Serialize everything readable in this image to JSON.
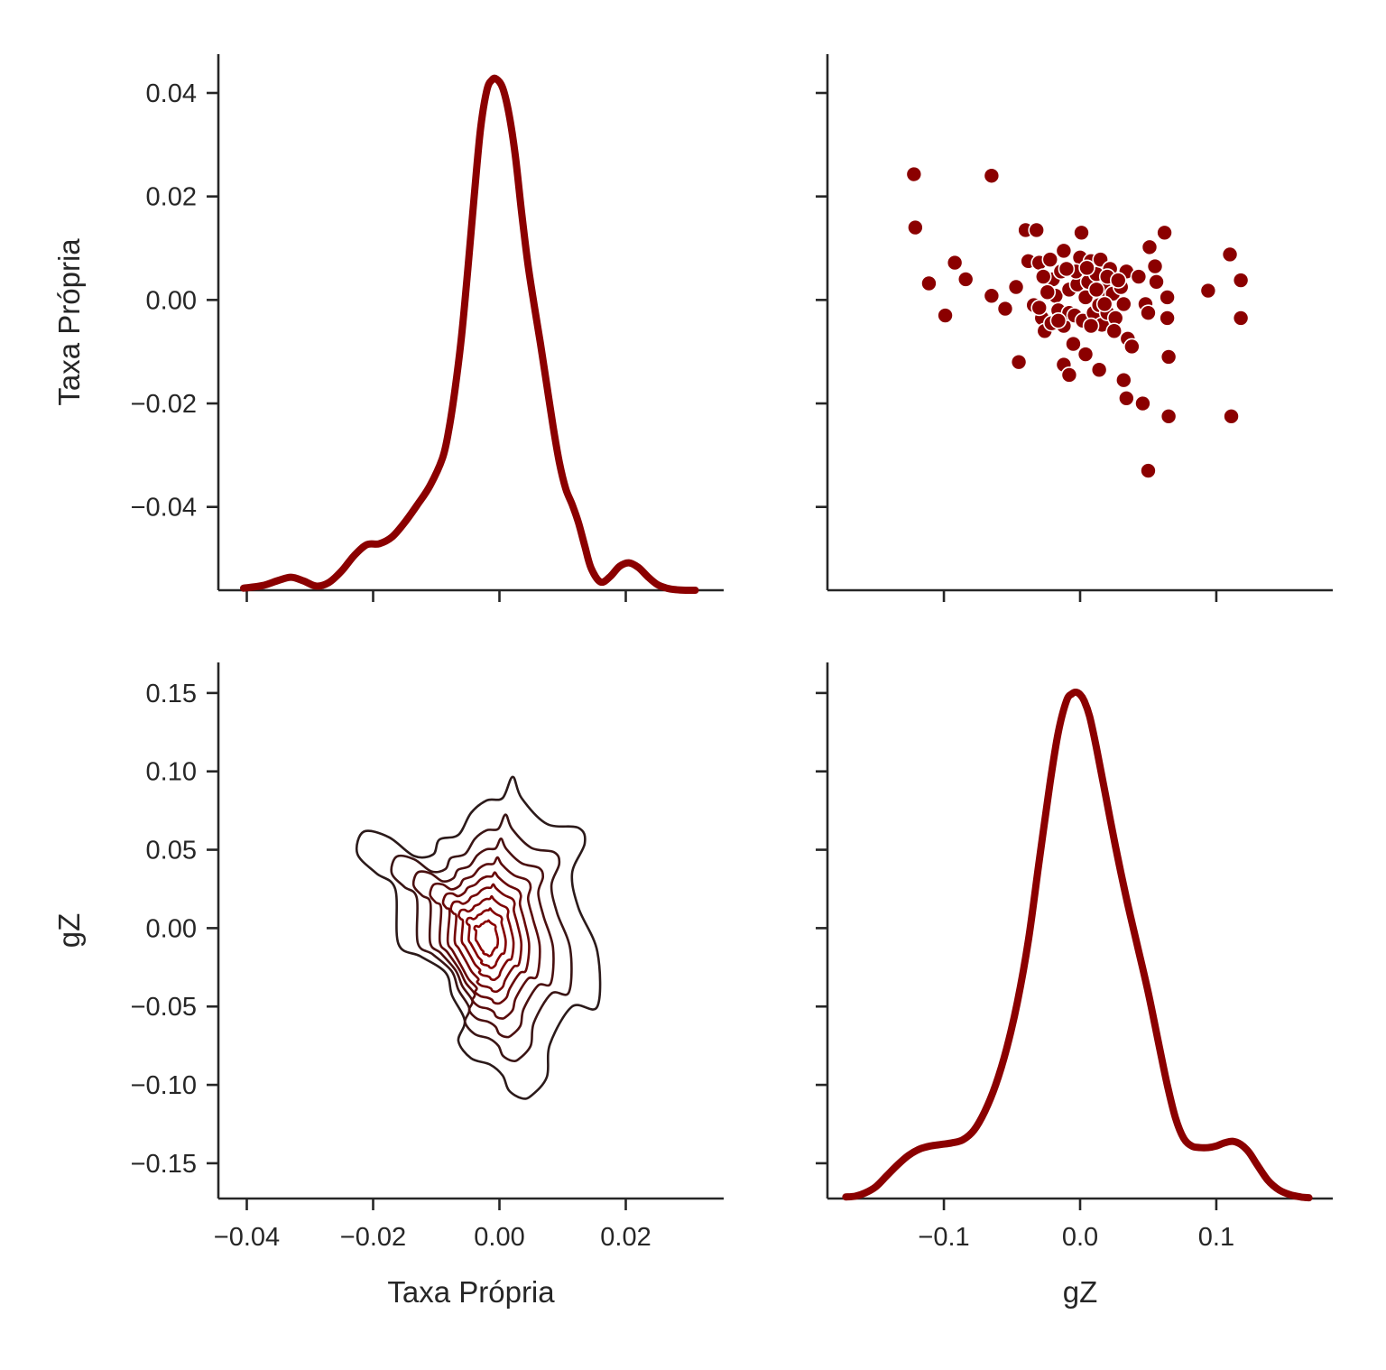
{
  "figure": {
    "accent_color": "#8b0000",
    "contour_colors": [
      "#2b1a1a",
      "#3a1515",
      "#4a1010",
      "#5a0c0c",
      "#680808",
      "#740505",
      "#7e0303",
      "#850101",
      "#8b0000"
    ]
  },
  "chart_data": [
    {
      "type": "line",
      "panel": "top-left",
      "description": "kde",
      "xlabel": "",
      "ylabel": "Taxa Própria",
      "xlim": [
        -0.0445,
        0.0355
      ],
      "ylim": [
        -0.0561,
        0.0475
      ],
      "x_ticks": [
        -0.04,
        -0.02,
        0.0,
        0.02
      ],
      "x_tick_labels": [
        "",
        "",
        "",
        ""
      ],
      "y_ticks": [
        0.04,
        0.02,
        0.0,
        -0.02,
        -0.04
      ],
      "y_tick_labels": [
        "0.04",
        "0.02",
        "0.00",
        "−0.02",
        "−0.04"
      ],
      "x": [
        -0.0405,
        -0.0375,
        -0.035,
        -0.033,
        -0.031,
        -0.029,
        -0.027,
        -0.025,
        -0.023,
        -0.021,
        -0.019,
        -0.017,
        -0.015,
        -0.013,
        -0.011,
        -0.009,
        -0.008,
        -0.007,
        -0.006,
        -0.005,
        -0.004,
        -0.003,
        -0.002,
        -0.0012,
        -0.0005,
        0.0005,
        0.0015,
        0.0025,
        0.0035,
        0.0045,
        0.0055,
        0.0065,
        0.0075,
        0.0085,
        0.0095,
        0.0105,
        0.0115,
        0.0125,
        0.0135,
        0.0145,
        0.016,
        0.0175,
        0.019,
        0.0205,
        0.022,
        0.0235,
        0.025,
        0.0265,
        0.028,
        0.0295,
        0.031
      ],
      "y": [
        -0.0557,
        -0.0552,
        -0.0542,
        -0.0536,
        -0.0543,
        -0.0553,
        -0.0546,
        -0.0524,
        -0.0494,
        -0.0473,
        -0.0471,
        -0.0458,
        -0.043,
        -0.0396,
        -0.0359,
        -0.0305,
        -0.025,
        -0.017,
        -0.007,
        0.006,
        0.02,
        0.033,
        0.0405,
        0.0425,
        0.0427,
        0.041,
        0.036,
        0.028,
        0.017,
        0.007,
        -0.001,
        -0.0085,
        -0.0165,
        -0.0245,
        -0.0315,
        -0.0365,
        -0.0395,
        -0.043,
        -0.0475,
        -0.0518,
        -0.0545,
        -0.0535,
        -0.0515,
        -0.0508,
        -0.0517,
        -0.0535,
        -0.055,
        -0.0557,
        -0.056,
        -0.0561,
        -0.0561
      ]
    },
    {
      "type": "scatter",
      "panel": "top-right",
      "xlabel": "",
      "ylabel": "",
      "xlim": [
        -0.1855,
        0.1855
      ],
      "ylim": [
        -0.0561,
        0.0475
      ],
      "x_ticks": [
        -0.1,
        0.0,
        0.1
      ],
      "x_tick_labels": [
        "",
        "",
        ""
      ],
      "y_ticks": [
        0.04,
        0.02,
        0.0,
        -0.02,
        -0.04
      ],
      "y_tick_labels": [
        "",
        "",
        "",
        "",
        ""
      ],
      "points": [
        [
          -0.122,
          0.0243
        ],
        [
          -0.065,
          0.024
        ],
        [
          -0.121,
          0.014
        ],
        [
          -0.092,
          0.0072
        ],
        [
          -0.111,
          0.0032
        ],
        [
          -0.084,
          0.004
        ],
        [
          -0.099,
          -0.003
        ],
        [
          -0.065,
          0.0008
        ],
        [
          -0.047,
          0.0025
        ],
        [
          -0.055,
          -0.0017
        ],
        [
          -0.045,
          -0.012
        ],
        [
          -0.04,
          0.0135
        ],
        [
          -0.032,
          0.0135
        ],
        [
          -0.038,
          0.0075
        ],
        [
          -0.03,
          0.0072
        ],
        [
          -0.034,
          -0.001
        ],
        [
          -0.028,
          -0.0035
        ],
        [
          -0.026,
          -0.006
        ],
        [
          -0.022,
          0.0078
        ],
        [
          -0.02,
          0.004
        ],
        [
          -0.018,
          0.0008
        ],
        [
          -0.016,
          -0.002
        ],
        [
          -0.014,
          0.0055
        ],
        [
          -0.012,
          -0.005
        ],
        [
          -0.012,
          0.0095
        ],
        [
          -0.008,
          0.002
        ],
        [
          -0.008,
          -0.0025
        ],
        [
          -0.005,
          -0.0085
        ],
        [
          -0.004,
          -0.003
        ],
        [
          -0.002,
          0.003
        ],
        [
          0.0,
          0.0082
        ],
        [
          0.001,
          0.013
        ],
        [
          0.002,
          -0.004
        ],
        [
          0.004,
          0.0005
        ],
        [
          0.004,
          -0.0105
        ],
        [
          0.006,
          0.0035
        ],
        [
          0.008,
          0.0075
        ],
        [
          0.01,
          -0.0025
        ],
        [
          0.012,
          0.005
        ],
        [
          0.014,
          -0.001
        ],
        [
          0.015,
          0.0078
        ],
        [
          0.016,
          -0.0048
        ],
        [
          0.018,
          0.002
        ],
        [
          0.02,
          -0.0025
        ],
        [
          0.022,
          0.006
        ],
        [
          0.024,
          0.0012
        ],
        [
          0.026,
          -0.0035
        ],
        [
          0.03,
          0.0025
        ],
        [
          0.032,
          -0.0008
        ],
        [
          0.034,
          0.0055
        ],
        [
          0.035,
          -0.0075
        ],
        [
          -0.012,
          -0.0125
        ],
        [
          -0.008,
          -0.0145
        ],
        [
          0.014,
          -0.0135
        ],
        [
          0.032,
          -0.0155
        ],
        [
          0.034,
          -0.019
        ],
        [
          0.046,
          -0.02
        ],
        [
          0.038,
          -0.009
        ],
        [
          0.043,
          0.0045
        ],
        [
          0.048,
          -0.0008
        ],
        [
          0.05,
          -0.0025
        ],
        [
          0.051,
          0.0102
        ],
        [
          0.055,
          0.0065
        ],
        [
          0.056,
          0.0035
        ],
        [
          0.062,
          0.013
        ],
        [
          0.064,
          0.0005
        ],
        [
          0.064,
          -0.0035
        ],
        [
          0.065,
          -0.011
        ],
        [
          0.065,
          -0.0225
        ],
        [
          0.05,
          -0.033
        ],
        [
          0.094,
          0.0018
        ],
        [
          0.11,
          0.0088
        ],
        [
          0.118,
          0.0038
        ],
        [
          0.118,
          -0.0035
        ],
        [
          0.111,
          -0.0225
        ],
        [
          -0.027,
          0.0045
        ],
        [
          -0.024,
          0.0015
        ],
        [
          -0.021,
          -0.0045
        ],
        [
          -0.016,
          -0.004
        ],
        [
          -0.003,
          0.0055
        ],
        [
          0.008,
          -0.005
        ],
        [
          0.012,
          0.002
        ],
        [
          0.02,
          0.0045
        ],
        [
          0.025,
          -0.006
        ],
        [
          0.028,
          0.0038
        ],
        [
          -0.03,
          -0.0015
        ],
        [
          0.005,
          0.0062
        ],
        [
          -0.01,
          0.006
        ],
        [
          0.018,
          -0.0008
        ]
      ]
    },
    {
      "type": "contour",
      "panel": "bottom-left",
      "description": "bivariate kde",
      "xlabel": "Taxa Própria",
      "ylabel": "gZ",
      "xlim": [
        -0.0445,
        0.0355
      ],
      "ylim": [
        -0.1725,
        0.1695
      ],
      "x_ticks": [
        -0.04,
        -0.02,
        0.0,
        0.02
      ],
      "x_tick_labels": [
        "−0.04",
        "−0.02",
        "0.00",
        "0.02"
      ],
      "y_ticks": [
        0.15,
        0.1,
        0.05,
        0.0,
        -0.05,
        -0.1,
        -0.15
      ],
      "y_tick_labels": [
        "0.15",
        "0.10",
        "0.05",
        "0.00",
        "−0.05",
        "−0.10",
        "−0.15"
      ],
      "levels": 9,
      "center": [
        -0.0021,
        -0.0065
      ]
    },
    {
      "type": "line",
      "panel": "bottom-right",
      "description": "kde",
      "xlabel": "gZ",
      "ylabel": "",
      "xlim": [
        -0.1855,
        0.1855
      ],
      "ylim": [
        -0.1725,
        0.1695
      ],
      "x_ticks": [
        -0.1,
        0.0,
        0.1
      ],
      "x_tick_labels": [
        "−0.1",
        "0.0",
        "0.1"
      ],
      "y_ticks": [
        0.15,
        0.1,
        0.05,
        0.0,
        -0.05,
        -0.1,
        -0.15
      ],
      "y_tick_labels": [
        "",
        "",
        "",
        "",
        "",
        "",
        ""
      ],
      "x": [
        -0.172,
        -0.165,
        -0.158,
        -0.15,
        -0.142,
        -0.134,
        -0.126,
        -0.118,
        -0.11,
        -0.102,
        -0.094,
        -0.086,
        -0.078,
        -0.07,
        -0.062,
        -0.054,
        -0.046,
        -0.038,
        -0.03,
        -0.022,
        -0.016,
        -0.01,
        -0.006,
        -0.003,
        0.0,
        0.003,
        0.007,
        0.012,
        0.018,
        0.026,
        0.034,
        0.042,
        0.05,
        0.058,
        0.064,
        0.07,
        0.076,
        0.082,
        0.088,
        0.094,
        0.1,
        0.106,
        0.112,
        0.118,
        0.124,
        0.13,
        0.138,
        0.146,
        0.154,
        0.162,
        0.168
      ],
      "y": [
        -0.1715,
        -0.171,
        -0.169,
        -0.165,
        -0.158,
        -0.151,
        -0.145,
        -0.141,
        -0.139,
        -0.138,
        -0.137,
        -0.135,
        -0.129,
        -0.117,
        -0.1,
        -0.077,
        -0.047,
        -0.008,
        0.043,
        0.093,
        0.125,
        0.145,
        0.1495,
        0.1505,
        0.149,
        0.145,
        0.135,
        0.115,
        0.088,
        0.052,
        0.019,
        -0.011,
        -0.041,
        -0.075,
        -0.1,
        -0.121,
        -0.134,
        -0.139,
        -0.14,
        -0.14,
        -0.139,
        -0.137,
        -0.136,
        -0.138,
        -0.143,
        -0.151,
        -0.161,
        -0.167,
        -0.17,
        -0.1715,
        -0.172
      ]
    }
  ]
}
